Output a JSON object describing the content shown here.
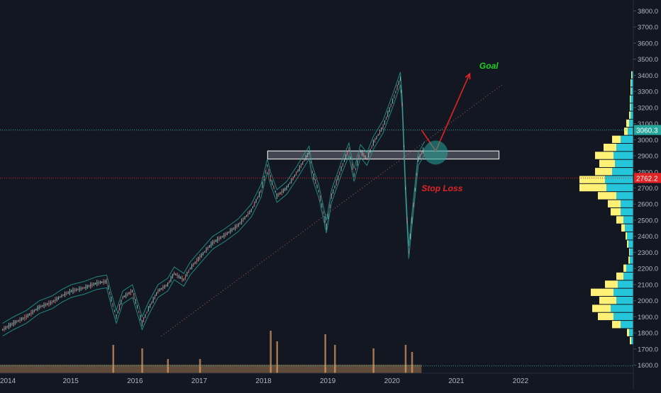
{
  "chart_data": {
    "type": "line",
    "instrument_hint": "",
    "x_axis": {
      "tick_labels": [
        "2014",
        "2015",
        "2016",
        "2017",
        "2018",
        "2019",
        "2020",
        "2021",
        "2022"
      ]
    },
    "y_axis": {
      "range": [
        1550,
        3850
      ],
      "tick_labels": [
        "1600.0",
        "1700.0",
        "1800.0",
        "1900.0",
        "2000.0",
        "2100.0",
        "2200.0",
        "2300.0",
        "2400.0",
        "2500.0",
        "2600.0",
        "2700.0",
        "2800.0",
        "2900.0",
        "3000.0",
        "3100.0",
        "3200.0",
        "3300.0",
        "3400.0",
        "3500.0",
        "3600.0",
        "3700.0",
        "3800.0"
      ],
      "position": "right"
    },
    "price_series": {
      "x": [
        2013.93,
        2014.1,
        2014.3,
        2014.5,
        2014.7,
        2014.85,
        2015.0,
        2015.2,
        2015.4,
        2015.55,
        2015.62,
        2015.7,
        2015.8,
        2015.95,
        2016.05,
        2016.1,
        2016.2,
        2016.35,
        2016.5,
        2016.6,
        2016.75,
        2016.85,
        2017.0,
        2017.2,
        2017.4,
        2017.6,
        2017.8,
        2017.95,
        2018.05,
        2018.1,
        2018.2,
        2018.35,
        2018.5,
        2018.7,
        2018.75,
        2018.85,
        2018.97,
        2019.05,
        2019.2,
        2019.32,
        2019.4,
        2019.5,
        2019.6,
        2019.7,
        2019.85,
        2020.0,
        2020.12,
        2020.15,
        2020.2,
        2020.25,
        2020.3,
        2020.4,
        2020.5
      ],
      "values": [
        1820,
        1860,
        1900,
        1960,
        1990,
        2030,
        2060,
        2080,
        2110,
        2120,
        2010,
        1900,
        2020,
        2060,
        1930,
        1860,
        1950,
        2060,
        2100,
        2170,
        2130,
        2200,
        2270,
        2360,
        2410,
        2470,
        2560,
        2680,
        2840,
        2760,
        2650,
        2700,
        2790,
        2920,
        2800,
        2680,
        2460,
        2650,
        2820,
        2940,
        2780,
        2930,
        2880,
        2980,
        3080,
        3240,
        3380,
        3220,
        2700,
        2300,
        2500,
        2880,
        2950
      ]
    },
    "resistance_zone": {
      "low": 2880,
      "high": 2930,
      "x_start": 2018.0,
      "x_end": 2021.6
    },
    "horizontal_lines": [
      {
        "label": "3060.3",
        "value": 3060.3,
        "color": "#26a69a",
        "style": "dotted"
      },
      {
        "label": "2762.2",
        "value": 2762.2,
        "color": "#e02424",
        "style": "dotted"
      }
    ],
    "bottom_line": {
      "value": 1595,
      "color": "#26a69a"
    },
    "annotations": [
      {
        "text": "Goal",
        "color": "#1fd31f",
        "x": 2021.35,
        "y": 3440
      },
      {
        "text": "Stop Loss",
        "color": "#e02424",
        "x": 2020.45,
        "y": 2680
      }
    ],
    "arrow": {
      "from": [
        2020.67,
        2930
      ],
      "to": [
        2021.2,
        3410
      ],
      "color": "#e02424"
    },
    "target_circle": {
      "x": 2020.67,
      "y": 2920,
      "color": "#26a69a"
    },
    "volume_profile": {
      "price_step": 50,
      "bins": [
        {
          "price": 1750,
          "a": 2,
          "b": 3
        },
        {
          "price": 1800,
          "a": 3,
          "b": 6
        },
        {
          "price": 1850,
          "a": 12,
          "b": 18
        },
        {
          "price": 1900,
          "a": 22,
          "b": 28
        },
        {
          "price": 1950,
          "a": 26,
          "b": 32
        },
        {
          "price": 2000,
          "a": 24,
          "b": 24
        },
        {
          "price": 2050,
          "a": 32,
          "b": 28
        },
        {
          "price": 2100,
          "a": 18,
          "b": 22
        },
        {
          "price": 2150,
          "a": 10,
          "b": 14
        },
        {
          "price": 2200,
          "a": 4,
          "b": 10
        },
        {
          "price": 2250,
          "a": 2,
          "b": 5
        },
        {
          "price": 2300,
          "a": 1,
          "b": 5
        },
        {
          "price": 2350,
          "a": 2,
          "b": 7
        },
        {
          "price": 2400,
          "a": 2,
          "b": 9
        },
        {
          "price": 2450,
          "a": 5,
          "b": 12
        },
        {
          "price": 2500,
          "a": 10,
          "b": 14
        },
        {
          "price": 2550,
          "a": 14,
          "b": 18
        },
        {
          "price": 2600,
          "a": 18,
          "b": 18
        },
        {
          "price": 2650,
          "a": 26,
          "b": 24
        },
        {
          "price": 2700,
          "a": 38,
          "b": 38
        },
        {
          "price": 2750,
          "a": 36,
          "b": 40
        },
        {
          "price": 2800,
          "a": 24,
          "b": 30
        },
        {
          "price": 2850,
          "a": 22,
          "b": 26
        },
        {
          "price": 2900,
          "a": 26,
          "b": 28
        },
        {
          "price": 2950,
          "a": 18,
          "b": 24
        },
        {
          "price": 3000,
          "a": 12,
          "b": 18
        },
        {
          "price": 3050,
          "a": 5,
          "b": 8
        },
        {
          "price": 3100,
          "a": 4,
          "b": 6
        },
        {
          "price": 3150,
          "a": 2,
          "b": 4
        },
        {
          "price": 3200,
          "a": 1,
          "b": 4
        },
        {
          "price": 3250,
          "a": 1,
          "b": 4
        },
        {
          "price": 3300,
          "a": 1,
          "b": 3
        },
        {
          "price": 3350,
          "a": 1,
          "b": 3
        },
        {
          "price": 3400,
          "a": 1,
          "b": 2
        }
      ]
    },
    "colors": {
      "background": "#131722",
      "axis_text": "#b2b5be",
      "grid": "#1e222d",
      "candle_up": "#8fd3c8",
      "candle_down": "#e57373",
      "band": "#26a69a",
      "vp_a": "#fff176",
      "vp_b": "#26c6da",
      "volume": "#f0a868"
    },
    "volume_bars": {
      "x": [
        2015.65,
        2016.1,
        2016.5,
        2017.0,
        2018.1,
        2018.2,
        2018.95,
        2019.1,
        2019.7,
        2020.2,
        2020.3
      ],
      "values": [
        40,
        35,
        20,
        20,
        60,
        45,
        55,
        40,
        35,
        40,
        30
      ]
    },
    "grid": false,
    "legend": "none"
  }
}
